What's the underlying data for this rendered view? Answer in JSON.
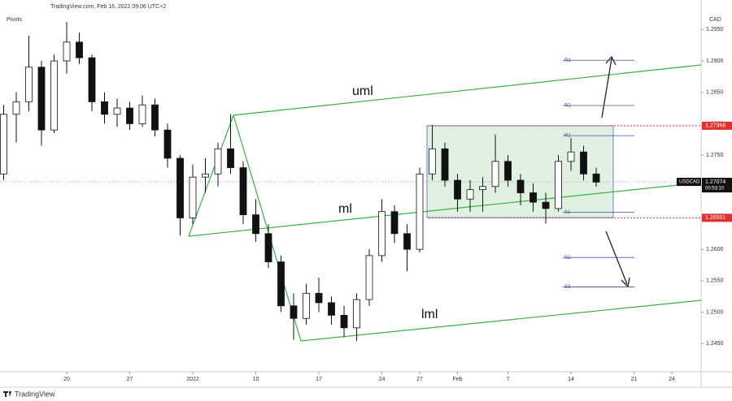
{
  "chart_data": {
    "type": "candlestick",
    "header": "TradingView.com, Feb 16, 2022 09:06 UTC+2",
    "indicator": "Pivots",
    "currency": "CAD",
    "symbol": "USDCAD",
    "last_price": 1.27074,
    "countdown": "00:53:10",
    "brand": "TradingView",
    "annotations": [
      "uml",
      "ml",
      "lml"
    ],
    "levels": [
      1.27968,
      1.26501
    ],
    "pivots": [
      {
        "name": "R3",
        "value": 1.2901
      },
      {
        "name": "R2",
        "value": 1.2829
      },
      {
        "name": "R1",
        "value": 1.2781
      },
      {
        "name": "S1",
        "value": 1.2659
      },
      {
        "name": "S2",
        "value": 1.2587
      },
      {
        "name": "S3",
        "value": 1.254
      }
    ],
    "x": [
      0,
      1,
      2,
      3,
      4,
      5,
      6,
      7,
      8,
      9,
      10,
      11,
      12,
      13,
      14,
      15,
      16,
      17,
      18,
      19,
      20,
      21,
      22,
      23,
      24,
      25,
      26,
      27,
      28,
      29,
      30,
      31,
      32,
      33,
      34,
      35,
      36,
      37,
      38,
      39,
      40,
      41,
      42,
      43,
      44,
      45,
      46,
      47
    ],
    "open": [
      1.272,
      1.2815,
      1.2835,
      1.289,
      1.279,
      1.29,
      1.293,
      1.2905,
      1.2835,
      1.2815,
      1.2825,
      1.28,
      1.283,
      1.279,
      1.2745,
      1.265,
      1.2715,
      1.272,
      1.276,
      1.273,
      1.2655,
      1.2625,
      1.258,
      1.251,
      1.249,
      1.253,
      1.2515,
      1.2495,
      1.2475,
      1.252,
      1.259,
      1.266,
      1.2625,
      1.26,
      1.272,
      1.276,
      1.271,
      1.268,
      1.2695,
      1.27,
      1.274,
      1.271,
      1.269,
      1.2675,
      1.2665,
      1.274,
      1.2755,
      1.272
    ],
    "high": [
      1.283,
      1.285,
      1.294,
      1.29,
      1.291,
      1.2962,
      1.2945,
      1.291,
      1.285,
      1.284,
      1.2835,
      1.2845,
      1.284,
      1.28,
      1.275,
      1.2735,
      1.2745,
      1.277,
      1.2815,
      1.274,
      1.268,
      1.264,
      1.259,
      1.253,
      1.2545,
      1.2555,
      1.2525,
      1.251,
      1.253,
      1.26,
      1.268,
      1.267,
      1.264,
      1.273,
      1.2798,
      1.277,
      1.272,
      1.271,
      1.2715,
      1.2783,
      1.275,
      1.272,
      1.2705,
      1.269,
      1.275,
      1.2777,
      1.2765,
      1.273
    ],
    "low": [
      1.271,
      1.277,
      1.282,
      1.2765,
      1.2785,
      1.288,
      1.2895,
      1.282,
      1.28,
      1.2795,
      1.279,
      1.2795,
      1.278,
      1.273,
      1.2622,
      1.264,
      1.269,
      1.27,
      1.272,
      1.264,
      1.2612,
      1.257,
      1.25,
      1.2456,
      1.248,
      1.25,
      1.248,
      1.246,
      1.2454,
      1.251,
      1.258,
      1.261,
      1.2565,
      1.2595,
      1.271,
      1.27,
      1.266,
      1.266,
      1.266,
      1.269,
      1.27,
      1.267,
      1.266,
      1.2641,
      1.266,
      1.2725,
      1.271,
      1.27
    ],
    "close": [
      1.2815,
      1.2835,
      1.289,
      1.279,
      1.29,
      1.293,
      1.2905,
      1.2835,
      1.2815,
      1.2825,
      1.28,
      1.283,
      1.279,
      1.2745,
      1.265,
      1.2715,
      1.272,
      1.276,
      1.273,
      1.2655,
      1.2625,
      1.258,
      1.251,
      1.249,
      1.253,
      1.2515,
      1.2495,
      1.2475,
      1.252,
      1.259,
      1.266,
      1.2625,
      1.26,
      1.272,
      1.276,
      1.271,
      1.268,
      1.2695,
      1.27,
      1.274,
      1.271,
      1.269,
      1.2675,
      1.2665,
      1.274,
      1.2755,
      1.272,
      1.2707
    ],
    "xlim": [
      -0.29,
      55.32
    ],
    "xticks": [
      {
        "value": 5,
        "label": "20"
      },
      {
        "value": 10,
        "label": "27"
      },
      {
        "value": 15,
        "label": "2022"
      },
      {
        "value": 20,
        "label": "10"
      },
      {
        "value": 25,
        "label": "17"
      },
      {
        "value": 30,
        "label": "24"
      },
      {
        "value": 33,
        "label": "27"
      },
      {
        "value": 36,
        "label": "Feb"
      },
      {
        "value": 40,
        "label": "7"
      },
      {
        "value": 45,
        "label": "14"
      },
      {
        "value": 50,
        "label": "21"
      },
      {
        "value": 53,
        "label": "24"
      }
    ],
    "ylim": [
      1.2405,
      1.2997
    ],
    "yticks": [
      {
        "value": 1.245,
        "label": "1.2450"
      },
      {
        "value": 1.25,
        "label": "1.2500"
      },
      {
        "value": 1.255,
        "label": "1.2550"
      },
      {
        "value": 1.26,
        "label": "1.2600"
      },
      {
        "value": 1.265,
        "label": "1.2650"
      },
      {
        "value": 1.27,
        "label": "1.2700"
      },
      {
        "value": 1.275,
        "label": "1.2750"
      },
      {
        "value": 1.28,
        "label": "1.2800"
      },
      {
        "value": 1.285,
        "label": "1.2850"
      },
      {
        "value": 1.29,
        "label": "1.2900"
      },
      {
        "value": 1.295,
        "label": "1.2950"
      }
    ],
    "up_color": "#ffffff",
    "down_color": "#111111",
    "level_color": "#e03030",
    "pivot_color": "#4a4aa8"
  }
}
